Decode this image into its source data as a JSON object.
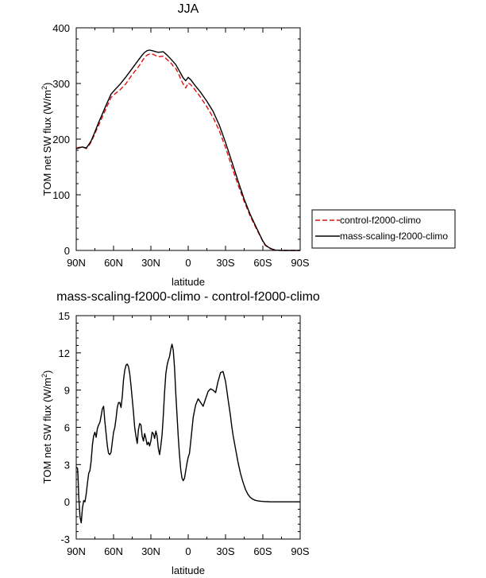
{
  "colors": {
    "control": "#dd1111",
    "mass_scaling": "#000000",
    "difference": "#000000"
  },
  "chart_data": [
    {
      "type": "line",
      "title": "JJA",
      "xlabel": "latitude",
      "ylabel": "TOM net SW flux",
      "ylabel_unit_base": "W/m",
      "ylabel_unit_exp": "2",
      "xlim": [
        90,
        -90
      ],
      "ylim": [
        0,
        400
      ],
      "xticks": [
        90,
        60,
        30,
        0,
        -30,
        -60,
        -90
      ],
      "xtick_labels": [
        "90N",
        "60N",
        "30N",
        "0",
        "30S",
        "60S",
        "90S"
      ],
      "yticks": [
        0,
        100,
        200,
        300,
        400
      ],
      "ytick_labels": [
        "0",
        "100",
        "200",
        "300",
        "400"
      ],
      "legend_position": "right",
      "series": [
        {
          "name": "control-f2000-climo",
          "style": "dashed",
          "x": [
            90,
            88,
            85,
            82,
            80,
            78,
            75,
            72,
            70,
            66,
            62,
            58,
            55,
            50,
            45,
            40,
            37,
            35,
            33,
            31,
            29,
            26,
            24,
            20,
            17,
            14,
            12,
            10,
            8,
            6,
            4,
            2,
            0,
            -2,
            -5,
            -10,
            -15,
            -20,
            -25,
            -30,
            -35,
            -40,
            -45,
            -50,
            -55,
            -58,
            -60,
            -62,
            -65,
            -68,
            -70,
            -75,
            -80,
            -85,
            -90
          ],
          "y": [
            184,
            185,
            186,
            183,
            188,
            195,
            210,
            225,
            235,
            255,
            275,
            283,
            288,
            300,
            316,
            330,
            340,
            347,
            351,
            353,
            353,
            350,
            348,
            349,
            343,
            337,
            331,
            327,
            319,
            308,
            299,
            292,
            301,
            298,
            290,
            275,
            258,
            239,
            215,
            185,
            151,
            118,
            88,
            61,
            38,
            25,
            16,
            9,
            4,
            1.5,
            0.5,
            0,
            0,
            0,
            0
          ]
        },
        {
          "name": "mass-scaling-f2000-climo",
          "style": "solid",
          "x": [
            90,
            88,
            85,
            82,
            80,
            78,
            75,
            72,
            70,
            66,
            62,
            58,
            55,
            50,
            45,
            40,
            37,
            35,
            33,
            31,
            29,
            26,
            24,
            20,
            17,
            14,
            12,
            10,
            8,
            6,
            4,
            2,
            0,
            -2,
            -5,
            -10,
            -15,
            -20,
            -25,
            -30,
            -35,
            -40,
            -45,
            -50,
            -55,
            -58,
            -60,
            -62,
            -65,
            -68,
            -70,
            -75,
            -80,
            -85,
            -90
          ],
          "y": [
            183,
            184,
            186,
            184,
            190,
            197,
            213,
            230,
            240,
            261,
            281,
            291,
            298,
            312,
            327,
            342,
            351,
            356,
            359,
            360,
            359,
            357,
            356,
            357,
            351,
            344,
            339,
            334,
            326,
            318,
            310,
            305,
            311,
            307,
            298,
            284,
            268,
            250,
            225,
            194,
            160,
            125,
            92,
            64,
            40,
            26,
            17,
            10,
            5,
            2,
            0.5,
            0,
            0,
            0,
            0
          ]
        }
      ]
    },
    {
      "type": "line",
      "title": "mass-scaling-f2000-climo - control-f2000-climo",
      "xlabel": "latitude",
      "ylabel": "TOM net SW flux",
      "ylabel_unit_base": "W/m",
      "ylabel_unit_exp": "2",
      "xlim": [
        90,
        -90
      ],
      "ylim": [
        -3,
        15
      ],
      "xticks": [
        90,
        60,
        30,
        0,
        -30,
        -60,
        -90
      ],
      "xtick_labels": [
        "90N",
        "60N",
        "30N",
        "0",
        "30S",
        "60S",
        "90S"
      ],
      "yticks": [
        -3,
        0,
        3,
        6,
        9,
        12,
        15
      ],
      "ytick_labels": [
        "-3",
        "0",
        "3",
        "6",
        "9",
        "12",
        "15"
      ],
      "series": [
        {
          "style": "solid",
          "x": [
            90,
            89,
            88.5,
            88,
            87,
            86,
            85,
            84,
            83,
            82,
            81,
            80,
            79,
            78,
            77,
            76,
            75,
            74,
            73,
            72,
            71,
            70,
            69,
            68,
            67,
            66,
            65,
            64,
            63,
            62,
            61,
            60,
            59,
            58,
            57,
            56,
            55,
            54,
            53,
            52,
            51,
            50,
            49,
            48,
            47,
            46,
            45,
            44,
            43,
            42,
            41,
            40,
            39,
            38,
            37,
            36,
            35,
            34,
            33,
            32,
            31,
            30,
            29,
            28,
            27,
            26,
            25,
            24,
            23,
            22,
            21,
            20,
            19,
            18,
            17,
            16,
            15,
            14,
            13,
            12,
            11,
            10,
            9,
            8,
            7,
            6,
            5,
            4,
            3,
            2,
            1,
            0,
            -1,
            -2,
            -3,
            -4,
            -5,
            -6,
            -8,
            -10,
            -12,
            -14,
            -16,
            -18,
            -20,
            -22,
            -24,
            -26,
            -28,
            -30,
            -31,
            -32,
            -33,
            -34,
            -35,
            -36,
            -38,
            -40,
            -42,
            -44,
            -46,
            -48,
            -50,
            -52,
            -54,
            -56,
            -58,
            -60,
            -62,
            -64,
            -66,
            -70,
            -75,
            -80,
            -85,
            -90
          ],
          "y": [
            2.8,
            2.7,
            2.0,
            0.5,
            -1.2,
            -1.7,
            -0.5,
            0.1,
            0.0,
            0.6,
            1.5,
            2.3,
            2.5,
            3.3,
            4.6,
            5.3,
            5.6,
            5.2,
            5.9,
            6.2,
            6.4,
            6.9,
            7.5,
            7.7,
            6.5,
            5.5,
            4.5,
            3.9,
            3.8,
            4.0,
            4.8,
            5.6,
            6.0,
            6.7,
            7.6,
            8.0,
            8.0,
            7.6,
            8.5,
            9.8,
            10.6,
            11.0,
            11.1,
            10.9,
            10.3,
            9.4,
            8.3,
            7.2,
            6.0,
            5.3,
            4.7,
            5.8,
            6.3,
            6.2,
            5.3,
            4.9,
            5.5,
            5.1,
            4.6,
            4.8,
            4.5,
            4.9,
            5.6,
            5.5,
            5.1,
            5.7,
            5.3,
            4.3,
            3.8,
            4.5,
            5.4,
            7.0,
            8.8,
            10.3,
            11.0,
            11.4,
            11.7,
            12.3,
            12.7,
            12.2,
            10.8,
            8.8,
            7.0,
            5.2,
            3.8,
            2.6,
            1.9,
            1.7,
            1.9,
            2.5,
            3.1,
            3.6,
            3.9,
            4.8,
            5.8,
            6.8,
            7.3,
            7.8,
            8.3,
            8.0,
            7.7,
            8.3,
            8.9,
            9.1,
            9.0,
            8.8,
            9.7,
            10.4,
            10.5,
            9.7,
            9.0,
            8.3,
            7.6,
            6.9,
            6.1,
            5.4,
            4.3,
            3.2,
            2.3,
            1.6,
            1.0,
            0.6,
            0.35,
            0.2,
            0.12,
            0.08,
            0.05,
            0.03,
            0.02,
            0.01,
            0.0,
            0.0,
            0.0,
            0.0,
            0.0,
            0.0
          ]
        }
      ]
    }
  ]
}
